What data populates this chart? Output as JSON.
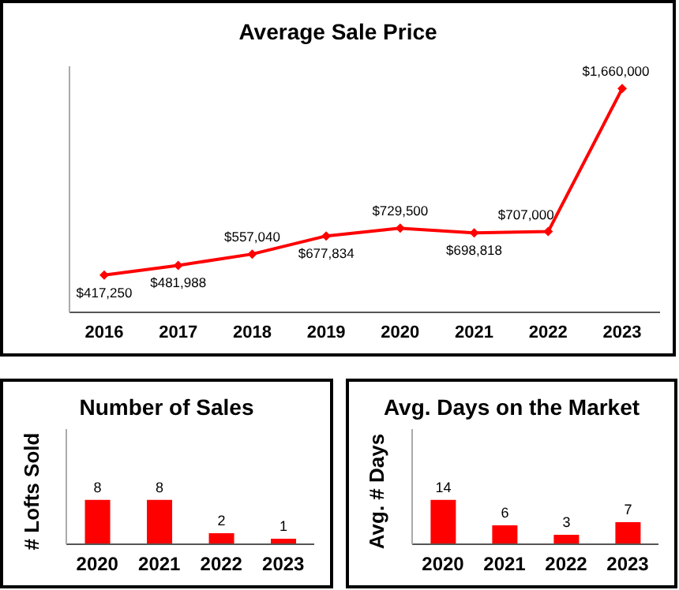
{
  "chart_data": [
    {
      "type": "line",
      "title": "Average Sale Price",
      "categories": [
        "2016",
        "2017",
        "2018",
        "2019",
        "2020",
        "2021",
        "2022",
        "2023"
      ],
      "series": [
        {
          "color": "#ff0000",
          "values": [
            417250,
            481988,
            557040,
            677834,
            729500,
            698818,
            707000,
            1660000
          ],
          "value_labels": [
            "$417,250",
            "$481,988",
            "$557,040",
            "$677,834",
            "$729,500",
            "$698,818",
            "$707,000",
            "$1,660,000"
          ]
        }
      ],
      "marker": "diamond",
      "legend": false
    },
    {
      "type": "bar",
      "title": "Number of Sales",
      "ylabel": "# Lofts Sold",
      "categories": [
        "2020",
        "2021",
        "2022",
        "2023"
      ],
      "values": [
        8,
        8,
        2,
        1
      ],
      "color": "#ff0000",
      "data_labels": true,
      "grid": false,
      "legend": false
    },
    {
      "type": "bar",
      "title": "Avg. Days on the Market",
      "ylabel": "Avg. # Days",
      "categories": [
        "2020",
        "2021",
        "2022",
        "2023"
      ],
      "values": [
        14,
        6,
        3,
        7
      ],
      "color": "#ff0000",
      "data_labels": true,
      "grid": false,
      "legend": false
    }
  ]
}
